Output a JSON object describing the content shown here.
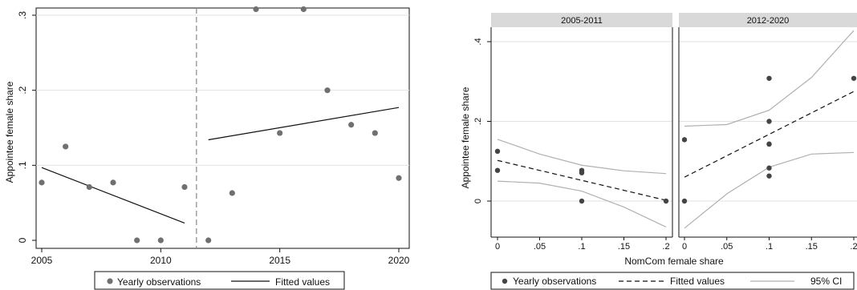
{
  "chart_data": [
    {
      "type": "scatter",
      "ylabel": "Appointee female share",
      "xlabel": "",
      "xlim": [
        2005,
        2020
      ],
      "ylim": [
        0,
        0.3
      ],
      "xticks": [
        "2005",
        "2010",
        "2015",
        "2020"
      ],
      "yticks": [
        "0",
        ".1",
        ".2",
        ".3"
      ],
      "grid": true,
      "reference_line_x": 2011.5,
      "series": [
        {
          "name": "Yearly observations",
          "kind": "scatter",
          "color": "#707070",
          "points": [
            [
              2005,
              0.077
            ],
            [
              2006,
              0.125
            ],
            [
              2007,
              0.071
            ],
            [
              2008,
              0.077
            ],
            [
              2009,
              0.0
            ],
            [
              2010,
              0.0
            ],
            [
              2011,
              0.071
            ],
            [
              2012,
              0.0
            ],
            [
              2013,
              0.063
            ],
            [
              2014,
              0.308
            ],
            [
              2015,
              0.143
            ],
            [
              2016,
              0.308
            ],
            [
              2017,
              0.2
            ],
            [
              2018,
              0.154
            ],
            [
              2019,
              0.143
            ],
            [
              2020,
              0.083
            ]
          ]
        },
        {
          "name": "Fitted values",
          "kind": "line",
          "color": "#111111",
          "segments": [
            [
              [
                2005,
                0.097
              ],
              [
                2011,
                0.023
              ]
            ],
            [
              [
                2012,
                0.134
              ],
              [
                2020,
                0.177
              ]
            ]
          ]
        }
      ],
      "legend": {
        "placement": "bottom",
        "items": [
          "Yearly observations",
          "Fitted values"
        ]
      }
    },
    {
      "type": "scatter",
      "ylabel": "Appointee female share",
      "xlabel": "NomCom female share",
      "facets": [
        "2005-2011",
        "2012-2020"
      ],
      "xlim": [
        0,
        0.2
      ],
      "ylim": [
        0,
        0.4
      ],
      "xticks": [
        "0",
        ".05",
        ".1",
        ".15",
        ".2"
      ],
      "yticks": [
        "0",
        ".2",
        ".4"
      ],
      "grid": true,
      "panels": [
        {
          "title": "2005-2011",
          "points": [
            [
              0,
              0.125
            ],
            [
              0,
              0.077
            ],
            [
              0.1,
              0.077
            ],
            [
              0.1,
              0.071
            ],
            [
              0.1,
              0.0
            ],
            [
              0.2,
              0.0
            ]
          ],
          "fit": [
            [
              0,
              0.102
            ],
            [
              0.2,
              0.002
            ]
          ],
          "ci_upper": [
            [
              0,
              0.155
            ],
            [
              0.05,
              0.118
            ],
            [
              0.1,
              0.09
            ],
            [
              0.15,
              0.076
            ],
            [
              0.2,
              0.069
            ]
          ],
          "ci_lower": [
            [
              0,
              0.05
            ],
            [
              0.05,
              0.045
            ],
            [
              0.1,
              0.025
            ],
            [
              0.15,
              -0.015
            ],
            [
              0.2,
              -0.065
            ]
          ]
        },
        {
          "title": "2012-2020",
          "points": [
            [
              0,
              0.154
            ],
            [
              0,
              0.0
            ],
            [
              0.1,
              0.308
            ],
            [
              0.1,
              0.2
            ],
            [
              0.1,
              0.143
            ],
            [
              0.1,
              0.143
            ],
            [
              0.1,
              0.083
            ],
            [
              0.1,
              0.063
            ],
            [
              0.2,
              0.308
            ]
          ],
          "fit": [
            [
              0,
              0.06
            ],
            [
              0.2,
              0.275
            ]
          ],
          "ci_upper": [
            [
              0,
              0.188
            ],
            [
              0.05,
              0.192
            ],
            [
              0.1,
              0.228
            ],
            [
              0.15,
              0.31
            ],
            [
              0.2,
              0.428
            ]
          ],
          "ci_lower": [
            [
              0,
              -0.068
            ],
            [
              0.05,
              0.018
            ],
            [
              0.1,
              0.085
            ],
            [
              0.15,
              0.118
            ],
            [
              0.2,
              0.122
            ]
          ]
        }
      ],
      "legend": {
        "placement": "bottom",
        "items": [
          "Yearly observations",
          "Fitted values",
          "95% CI"
        ]
      }
    }
  ]
}
